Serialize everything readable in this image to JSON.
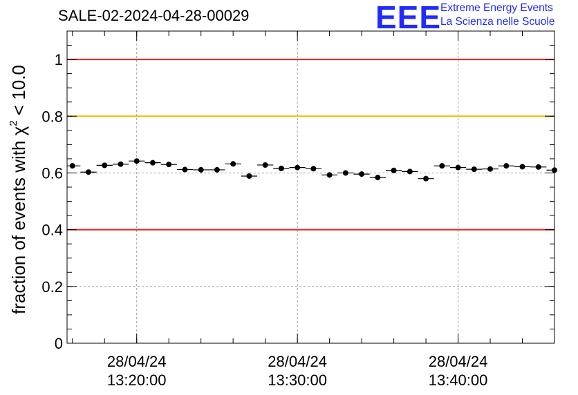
{
  "header": {
    "title": "SALE-02-2024-04-28-00029",
    "logo_text": "EEE",
    "logo_line1": "Extreme Energy Events",
    "logo_line2": "La Scienza nelle Scuole"
  },
  "colors": {
    "red_line": "#e8201a",
    "orange_line": "#f5b800",
    "logo_blue": "#1f2bff",
    "marker": "#000000",
    "grid": "#9a9a9a"
  },
  "chart_data": {
    "type": "scatter",
    "title": "SALE-02-2024-04-28-00029",
    "ylabel_main": "fraction of events with χ",
    "ylabel_sup": "2",
    "ylabel_tail": " < 10.0",
    "ylim": [
      0,
      1.1
    ],
    "y_ticks": [
      0,
      0.2,
      0.4,
      0.6,
      0.8,
      1
    ],
    "y_tick_labels": [
      "0",
      "0.2",
      "0.4",
      "0.6",
      "0.8",
      "1"
    ],
    "x_range": [
      "13:15:40",
      "13:46:00"
    ],
    "x_ticks": [
      {
        "time": "13:20:00",
        "date_label": "28/04/24",
        "time_label": "13:20:00"
      },
      {
        "time": "13:30:00",
        "date_label": "28/04/24",
        "time_label": "13:30:00"
      },
      {
        "time": "13:40:00",
        "date_label": "28/04/24",
        "time_label": "13:40:00"
      }
    ],
    "grid": true,
    "reference_lines": [
      {
        "y": 1.0,
        "color": "red"
      },
      {
        "y": 0.8,
        "color": "orange"
      },
      {
        "y": 0.4,
        "color": "red"
      }
    ],
    "bin_width_seconds": 60,
    "series": [
      {
        "x": [
          "13:16:00",
          "13:17:00",
          "13:18:00",
          "13:19:00",
          "13:20:00",
          "13:21:00",
          "13:22:00",
          "13:23:00",
          "13:24:00",
          "13:25:00",
          "13:26:00",
          "13:27:00",
          "13:28:00",
          "13:29:00",
          "13:30:00",
          "13:31:00",
          "13:32:00",
          "13:33:00",
          "13:34:00",
          "13:35:00",
          "13:36:00",
          "13:37:00",
          "13:38:00",
          "13:39:00",
          "13:40:00",
          "13:41:00",
          "13:42:00",
          "13:43:00",
          "13:44:00",
          "13:45:00",
          "13:46:00"
        ],
        "y": [
          0.625,
          0.603,
          0.627,
          0.631,
          0.642,
          0.636,
          0.63,
          0.612,
          0.611,
          0.611,
          0.632,
          0.589,
          0.628,
          0.616,
          0.619,
          0.615,
          0.593,
          0.6,
          0.596,
          0.584,
          0.609,
          0.605,
          0.58,
          0.625,
          0.619,
          0.613,
          0.614,
          0.625,
          0.622,
          0.621,
          0.61
        ],
        "y_err": [
          0.009,
          0.009,
          0.009,
          0.009,
          0.009,
          0.009,
          0.009,
          0.009,
          0.009,
          0.009,
          0.009,
          0.009,
          0.009,
          0.009,
          0.009,
          0.009,
          0.009,
          0.009,
          0.009,
          0.009,
          0.009,
          0.009,
          0.009,
          0.009,
          0.009,
          0.009,
          0.009,
          0.009,
          0.009,
          0.009,
          0.009
        ]
      }
    ]
  }
}
